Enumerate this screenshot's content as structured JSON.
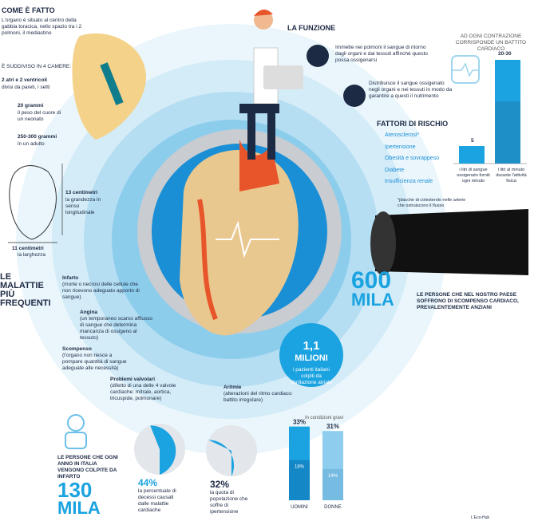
{
  "come_e_fatto": {
    "title": "COME È FATTO",
    "text": "L'organo è situato al centro della gabbia toracica, nello spazio tra i 2 polmoni, il mediastino",
    "suddiviso": "È SUDDIVISO IN 4 CAMERE:",
    "camere": "2 atri e 2 ventricoli",
    "camere_text": "divisi da pareti, i setti",
    "neonato": {
      "value": "20 grammi",
      "text": "il peso del cuore di un neonato"
    },
    "adulto": {
      "value": "250-300 grammi",
      "text": "in un adulto"
    },
    "lunghezza": {
      "value": "13 centimetri",
      "text": "la grandezza in senso longitudinale"
    },
    "larghezza": {
      "value": "11 centimetri",
      "text": "la larghezza"
    }
  },
  "funzione": {
    "title": "LA FUNZIONE",
    "items": [
      "Immette nei polmoni il sangue di ritorno dagli organi e dai tessuti affinché questo possa ossigenarsi",
      "Distribuisce il sangue ossigenato negli organi e nei tessuti in modo da garantire a questi il nutrimento"
    ]
  },
  "fattori": {
    "title": "FATTORI DI RISCHIO",
    "items": [
      "Aterosclerosi*",
      "Ipertensione",
      "Obesità e sovrappeso",
      "Diabete",
      "Insufficienza renale"
    ],
    "note": "*placche di colesterolo nelle arterie che ostruiscono il flusso"
  },
  "contrazione": {
    "title": "AD OGNI CONTRAZIONE CORRISPONDE UN BATTITO CARDIACO",
    "bars": [
      {
        "value": "5",
        "text": "i litri di sangue ossigenato forniti ogni minuto"
      },
      {
        "value": "20-30",
        "text": "i litri al minuto durante l'attività fisica"
      }
    ]
  },
  "scompenso": {
    "value": "600",
    "unit": "MILA",
    "text": "LE PERSONE CHE NEL NOSTRO PAESE SOFFRONO DI SCOMPENSO CARDIACO, PREVALENTEMENTE ANZIANI"
  },
  "fibrillazione": {
    "value": "1,1",
    "unit": "MILIONI",
    "text": "i pazienti italiani colpiti da fibrillazione atriale"
  },
  "malattie": {
    "title": "LE MALATTIE PIÙ FREQUENTI",
    "items": [
      {
        "name": "Infarto",
        "text": "(morte o necrosi delle cellule che non ricevono adeguato apporto di sangue)"
      },
      {
        "name": "Angina",
        "text": "(un temporaneo scarso afflusso di sangue che determina mancanza di ossigeno al tessuto)"
      },
      {
        "name": "Scompenso",
        "text": "(l'organo non riesce a pompare quantità di sangue adeguate alle necessità)"
      },
      {
        "name": "Problemi valvolari",
        "text": "(difetto di una delle 4 valvole cardiache: mitrale, aortica, tricuspide, polmonare)"
      },
      {
        "name": "Aritmie",
        "text": "(alterazioni del ritmo cardiaco: battito irregolare)"
      }
    ]
  },
  "infarto": {
    "text": "LE PERSONE CHE OGNI ANNO IN ITALIA VENGONO COLPITE DA INFARTO",
    "value": "130",
    "unit": "MILA"
  },
  "pies": [
    {
      "value": 44,
      "label": "44%",
      "text": "la percentuale di decessi causati dalle malattie cardiache"
    },
    {
      "value": 32,
      "label": "32%",
      "text": "la quota di popolazione che soffre di ipertensione"
    }
  ],
  "genere": {
    "legend": "In condizioni gravi",
    "categories": [
      "UOMINI",
      "DONNE"
    ],
    "values": [
      33,
      31
    ],
    "value_labels": [
      "33%",
      "31%"
    ],
    "gravi": [
      18,
      14
    ],
    "gravi_labels": [
      "18%",
      "14%"
    ]
  },
  "credit": "L'Eco-Hub"
}
